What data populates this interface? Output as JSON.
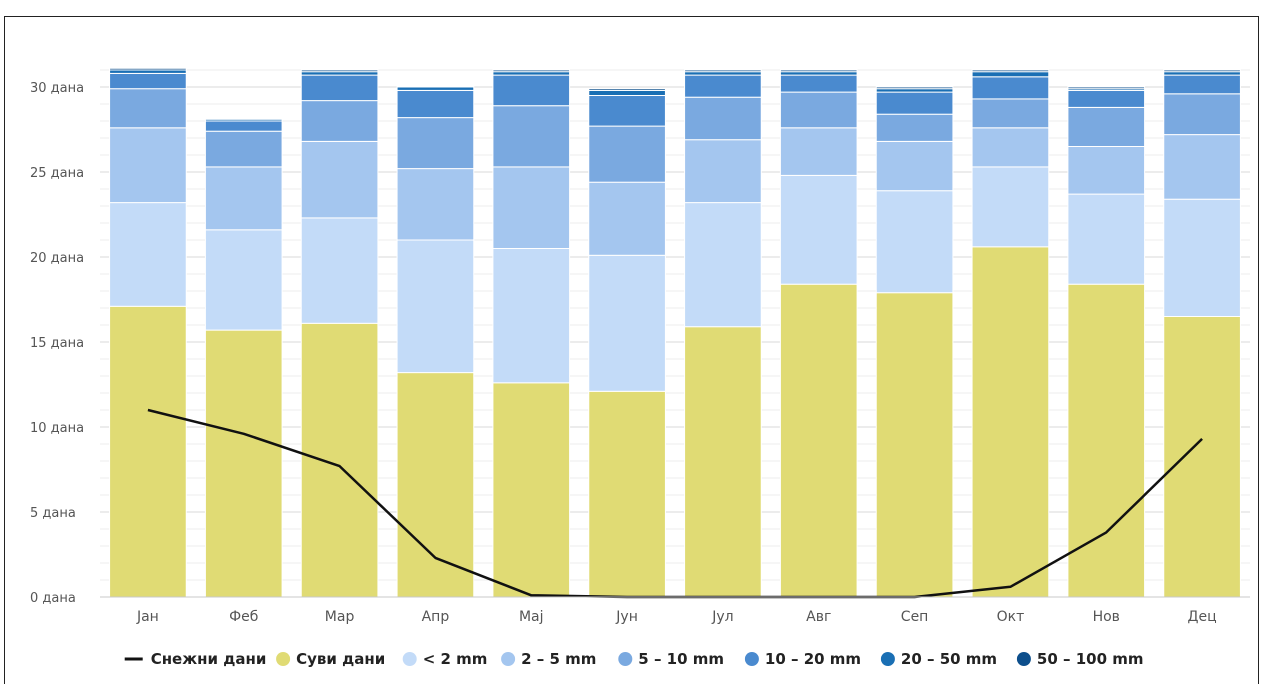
{
  "chart_data": {
    "type": "bar",
    "stacked": true,
    "y_unit": "дана",
    "ylim": [
      0,
      31
    ],
    "yticks": [
      "0 дана",
      "5 дана",
      "10 дана",
      "15 дана",
      "20 дана",
      "25 дана",
      "30 дана"
    ],
    "grid": true,
    "legend_position": "bottom",
    "categories": [
      "Јан",
      "Феб",
      "Мар",
      "Апр",
      "Мај",
      "Јун",
      "Јул",
      "Авг",
      "Сеп",
      "Окт",
      "Нов",
      "Дец"
    ],
    "series": [
      {
        "name": "Суви дани",
        "color": "#e0db74",
        "values": [
          17.1,
          15.7,
          16.1,
          13.2,
          12.6,
          12.1,
          15.9,
          18.4,
          17.9,
          20.6,
          18.4,
          16.5
        ]
      },
      {
        "name": "< 2 mm",
        "color": "#c3dbf8",
        "values": [
          6.1,
          5.9,
          6.2,
          7.8,
          7.9,
          8.0,
          7.3,
          6.4,
          6.0,
          4.7,
          5.3,
          6.9
        ]
      },
      {
        "name": "2 – 5 mm",
        "color": "#a4c6ef",
        "values": [
          4.4,
          3.7,
          4.5,
          4.2,
          4.8,
          4.3,
          3.7,
          2.8,
          2.9,
          2.3,
          2.8,
          3.8
        ]
      },
      {
        "name": "5 – 10 mm",
        "color": "#7aa9e0",
        "values": [
          2.3,
          2.1,
          2.4,
          3.0,
          3.6,
          3.3,
          2.5,
          2.1,
          1.6,
          1.7,
          2.3,
          2.4
        ]
      },
      {
        "name": "10 – 20 mm",
        "color": "#4a8acf",
        "values": [
          0.9,
          0.6,
          1.5,
          1.6,
          1.8,
          1.8,
          1.3,
          1.0,
          1.3,
          1.3,
          1.0,
          1.1
        ]
      },
      {
        "name": "20 – 50 mm",
        "color": "#1a6fb4",
        "values": [
          0.2,
          0.1,
          0.2,
          0.2,
          0.2,
          0.3,
          0.2,
          0.2,
          0.2,
          0.3,
          0.1,
          0.2
        ]
      },
      {
        "name": "50 – 100 mm",
        "color": "#0d4f8c",
        "values": [
          0.1,
          0.0,
          0.1,
          0.0,
          0.1,
          0.1,
          0.1,
          0.1,
          0.1,
          0.1,
          0.1,
          0.1
        ]
      }
    ],
    "line_series": {
      "name": "Снежни дани",
      "color": "#111111",
      "values": [
        11.0,
        9.6,
        7.7,
        2.3,
        0.1,
        0.0,
        0.0,
        0.0,
        0.0,
        0.6,
        3.8,
        9.3
      ]
    }
  }
}
